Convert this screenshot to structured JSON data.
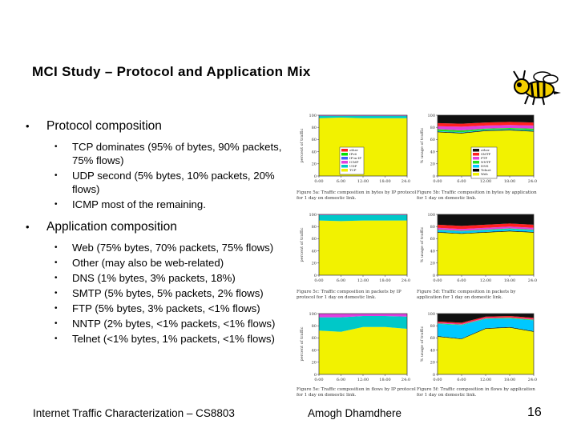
{
  "title": "MCI Study – Protocol and Application Mix",
  "sections": [
    {
      "heading": "Protocol composition",
      "items": [
        "TCP dominates (95% of bytes, 90% packets, 75% flows)",
        "UDP second (5% bytes, 10% packets, 20% flows)",
        "ICMP most of the remaining."
      ]
    },
    {
      "heading": "Application composition",
      "items": [
        "Web (75% bytes, 70% packets, 75% flows)",
        "Other (may also be web-related)",
        "DNS (1% bytes, 3% packets, 18%)",
        "SMTP (5% bytes, 5% packets, 2% flows)",
        "FTP (5% bytes, 3% packets, <1% flows)",
        "NNTP (2% bytes, <1% packets, <1% flows)",
        "Telnet (<1% bytes, 1% packets, <1% flows)"
      ]
    }
  ],
  "footer": {
    "left": "Internet Traffic Characterization – CS8803",
    "center": "Amogh Dhamdhere",
    "page": "16"
  },
  "figures": {
    "y_ticks": [
      "100",
      "80",
      "60",
      "40",
      "20",
      "0"
    ],
    "x_ticks": [
      "0:00",
      "6:00",
      "12:00",
      "18:00",
      "24:00"
    ],
    "ylabel_left": "percent of traffic",
    "ylabel_right": "% usage of traffic",
    "captions": [
      "Figure 5a: Traffic composition in bytes by IP protocol for 1 day on domestic link.",
      "Figure 5b: Traffic composition in bytes by application for 1 day on domestic link.",
      "Figure 5c: Traffic composition in packets by IP protocol for 1 day on domestic link.",
      "Figure 5d: Traffic composition in packets by application for 1 day on domestic link.",
      "Figure 5e: Traffic composition in flows by IP protocol for 1 day on domestic link.",
      "Figure 5f: Traffic composition in flows by application for 1 day on domestic link."
    ],
    "legend_protocol": [
      "other",
      "IPv6",
      "IP-in-IP",
      "ICMP",
      "UDP",
      "TCP"
    ],
    "legend_application": [
      "other",
      "SMTP",
      "FTP",
      "NNTP",
      "DNS",
      "Telnet",
      "Web"
    ]
  },
  "chart_data": [
    {
      "type": "area",
      "name": "protocol-bytes",
      "x": [
        "0:00",
        "6:00",
        "12:00",
        "18:00",
        "24:00"
      ],
      "ylim": [
        0,
        100
      ],
      "series": [
        {
          "name": "TCP",
          "values": [
            95,
            96,
            95,
            95,
            95
          ]
        },
        {
          "name": "UDP",
          "values": [
            4,
            3,
            4,
            4,
            4
          ]
        },
        {
          "name": "ICMP",
          "values": [
            1,
            1,
            1,
            1,
            1
          ]
        }
      ]
    },
    {
      "type": "area",
      "name": "application-bytes",
      "x": [
        "0:00",
        "6:00",
        "12:00",
        "18:00",
        "24:00"
      ],
      "ylim": [
        0,
        100
      ],
      "series": [
        {
          "name": "Web",
          "values": [
            72,
            70,
            74,
            75,
            73
          ]
        },
        {
          "name": "Telnet",
          "values": [
            1,
            1,
            1,
            1,
            1
          ]
        },
        {
          "name": "DNS",
          "values": [
            1,
            1,
            1,
            1,
            1
          ]
        },
        {
          "name": "NNTP",
          "values": [
            3,
            3,
            2,
            2,
            3
          ]
        },
        {
          "name": "FTP",
          "values": [
            5,
            6,
            5,
            5,
            5
          ]
        },
        {
          "name": "SMTP",
          "values": [
            5,
            5,
            5,
            5,
            5
          ]
        },
        {
          "name": "other",
          "values": [
            13,
            14,
            12,
            11,
            12
          ]
        }
      ]
    },
    {
      "type": "area",
      "name": "protocol-packets",
      "x": [
        "0:00",
        "6:00",
        "12:00",
        "18:00",
        "24:00"
      ],
      "ylim": [
        0,
        100
      ],
      "series": [
        {
          "name": "TCP",
          "values": [
            90,
            89,
            90,
            90,
            90
          ]
        },
        {
          "name": "UDP",
          "values": [
            9,
            10,
            9,
            9,
            9
          ]
        },
        {
          "name": "ICMP",
          "values": [
            1,
            1,
            1,
            1,
            1
          ]
        }
      ]
    },
    {
      "type": "area",
      "name": "application-packets",
      "x": [
        "0:00",
        "6:00",
        "12:00",
        "18:00",
        "24:00"
      ],
      "ylim": [
        0,
        100
      ],
      "series": [
        {
          "name": "Web",
          "values": [
            70,
            68,
            70,
            72,
            70
          ]
        },
        {
          "name": "Telnet",
          "values": [
            1,
            1,
            1,
            1,
            1
          ]
        },
        {
          "name": "DNS",
          "values": [
            3,
            3,
            3,
            3,
            3
          ]
        },
        {
          "name": "NNTP",
          "values": [
            1,
            1,
            1,
            1,
            1
          ]
        },
        {
          "name": "FTP",
          "values": [
            3,
            3,
            3,
            3,
            3
          ]
        },
        {
          "name": "SMTP",
          "values": [
            5,
            5,
            5,
            5,
            5
          ]
        },
        {
          "name": "other",
          "values": [
            17,
            19,
            17,
            15,
            17
          ]
        }
      ]
    },
    {
      "type": "area",
      "name": "protocol-flows",
      "x": [
        "0:00",
        "6:00",
        "12:00",
        "18:00",
        "24:00"
      ],
      "ylim": [
        0,
        100
      ],
      "series": [
        {
          "name": "TCP",
          "values": [
            72,
            70,
            78,
            78,
            75
          ]
        },
        {
          "name": "UDP",
          "values": [
            22,
            24,
            18,
            18,
            20
          ]
        },
        {
          "name": "ICMP",
          "values": [
            6,
            6,
            4,
            4,
            5
          ]
        }
      ]
    },
    {
      "type": "area",
      "name": "application-flows",
      "x": [
        "0:00",
        "6:00",
        "12:00",
        "18:00",
        "24:00"
      ],
      "ylim": [
        0,
        100
      ],
      "series": [
        {
          "name": "Web",
          "values": [
            62,
            58,
            75,
            77,
            70
          ]
        },
        {
          "name": "Telnet",
          "values": [
            1,
            1,
            1,
            1,
            1
          ]
        },
        {
          "name": "DNS",
          "values": [
            20,
            22,
            15,
            14,
            18
          ]
        },
        {
          "name": "NNTP",
          "values": [
            1,
            1,
            1,
            1,
            1
          ]
        },
        {
          "name": "FTP",
          "values": [
            1,
            1,
            1,
            1,
            1
          ]
        },
        {
          "name": "SMTP",
          "values": [
            2,
            2,
            2,
            2,
            2
          ]
        },
        {
          "name": "other",
          "values": [
            13,
            15,
            5,
            4,
            7
          ]
        }
      ]
    }
  ],
  "colors": {
    "TCP": "#f2f200",
    "UDP": "#00c8c8",
    "ICMP": "#e040e0",
    "IPv6": "#00e000",
    "IP-in-IP": "#4060ff",
    "other_proto": "#ff2020",
    "Web": "#f2f200",
    "Telnet": "#000000",
    "DNS": "#00c8ff",
    "NNTP": "#20e020",
    "FTP": "#e040e0",
    "SMTP": "#ff2020",
    "other_app": "#101010"
  }
}
